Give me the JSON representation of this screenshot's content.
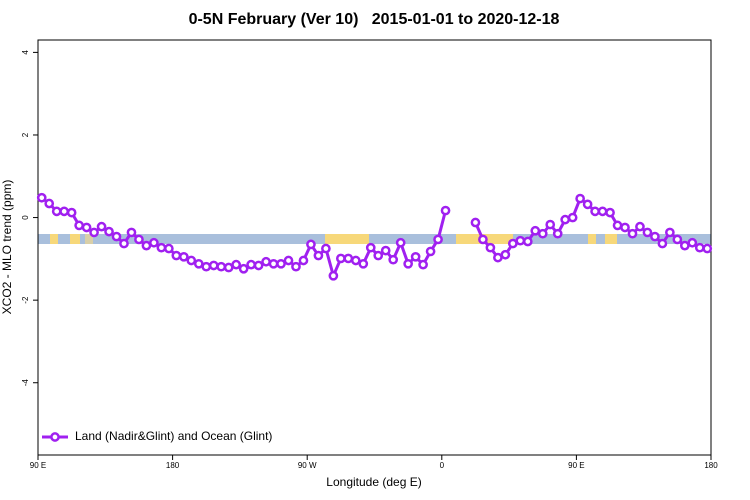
{
  "chart_data": {
    "type": "line",
    "title": "0-5N February (Ver 10)   2015-01-01 to 2020-12-18",
    "xlabel": "Longitude (deg E)",
    "ylabel": "XCO2 - MLO trend (ppm)",
    "x": [
      92.5,
      97.5,
      102.5,
      107.5,
      112.5,
      117.5,
      122.5,
      127.5,
      132.5,
      137.5,
      142.5,
      147.5,
      152.5,
      157.5,
      162.5,
      167.5,
      172.5,
      177.5,
      182.5,
      187.5,
      192.5,
      197.5,
      202.5,
      207.5,
      212.5,
      217.5,
      222.5,
      227.5,
      232.5,
      237.5,
      242.5,
      247.5,
      252.5,
      257.5,
      262.5,
      267.5,
      272.5,
      277.5,
      282.5,
      287.5,
      292.5,
      297.5,
      302.5,
      307.5,
      312.5,
      317.5,
      322.5,
      327.5,
      332.5,
      337.5,
      342.5,
      347.5,
      352.5,
      357.5,
      362.5,
      367.5,
      372.5,
      377.5,
      382.5,
      387.5,
      392.5,
      397.5,
      402.5,
      407.5,
      412.5,
      417.5,
      422.5,
      427.5,
      432.5,
      437.5,
      442.5,
      447.5,
      452.5,
      457.5,
      462.5,
      467.5,
      472.5,
      477.5,
      482.5,
      487.5,
      492.5,
      497.5,
      502.5,
      507.5,
      512.5,
      517.5,
      522.5,
      527.5,
      532.5,
      537.5
    ],
    "series": [
      {
        "name": "Land (Nadir&Glint) and Ocean (Glint)",
        "color": "#a020f0",
        "values": [
          0.48,
          0.34,
          0.15,
          0.15,
          0.12,
          -0.19,
          -0.24,
          -0.36,
          -0.22,
          -0.34,
          -0.46,
          -0.63,
          -0.36,
          -0.53,
          -0.68,
          -0.61,
          -0.73,
          -0.75,
          -0.92,
          -0.95,
          -1.04,
          -1.12,
          -1.19,
          -1.16,
          -1.19,
          -1.21,
          -1.14,
          -1.24,
          -1.14,
          -1.16,
          -1.07,
          -1.12,
          -1.12,
          -1.04,
          -1.19,
          -1.04,
          -0.65,
          -0.92,
          -0.75,
          -1.41,
          -0.99,
          -0.99,
          -1.04,
          -1.12,
          -0.73,
          -0.92,
          -0.8,
          -1.02,
          -0.61,
          -1.12,
          -0.95,
          -1.14,
          -0.82,
          -0.53,
          0.17,
          null,
          null,
          null,
          -0.12,
          -0.53,
          -0.73,
          -0.97,
          -0.9,
          -0.63,
          -0.56,
          -0.58,
          -0.32,
          -0.39,
          -0.17,
          -0.39,
          -0.05,
          0.0,
          0.46,
          0.32,
          0.15,
          0.15,
          0.12,
          -0.19,
          -0.24,
          -0.39,
          -0.22,
          -0.36,
          -0.46,
          -0.63,
          -0.36,
          -0.53,
          -0.68,
          -0.61,
          -0.73,
          -0.75
        ]
      }
    ],
    "xlim": [
      90,
      540
    ],
    "xticks": [
      {
        "value": 90,
        "label": "90 E"
      },
      180,
      {
        "value": 270,
        "label": "90 W"
      },
      {
        "value": 360,
        "label": "0"
      },
      {
        "value": 450,
        "label": "90 E"
      },
      {
        "value": 540,
        "label": "180"
      }
    ],
    "ylim": [
      -5.75,
      4.3
    ],
    "yticks": [
      4,
      2,
      0,
      -2,
      -4
    ],
    "legend": "bottomleft"
  }
}
